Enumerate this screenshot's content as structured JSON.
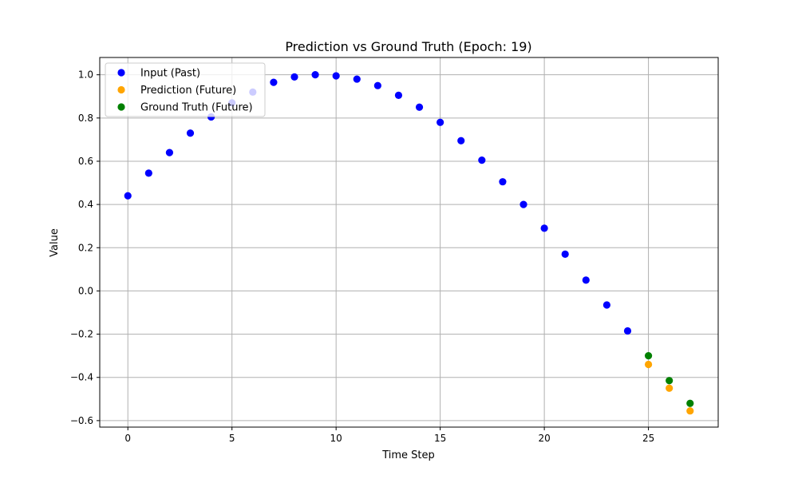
{
  "chart_data": {
    "type": "scatter",
    "title": "Prediction vs Ground Truth (Epoch: 19)",
    "xlabel": "Time Step",
    "ylabel": "Value",
    "xlim": [
      -1.35,
      28.35
    ],
    "ylim": [
      -0.63,
      1.08
    ],
    "xticks": [
      0,
      5,
      10,
      15,
      20,
      25
    ],
    "yticks": [
      -0.6,
      -0.4,
      -0.2,
      0.0,
      0.2,
      0.4,
      0.6,
      0.8,
      1.0
    ],
    "ytick_labels": [
      "−0.6",
      "−0.4",
      "−0.2",
      "0.0",
      "0.2",
      "0.4",
      "0.6",
      "0.8",
      "1.0"
    ],
    "grid": true,
    "legend_position": "top-left",
    "series": [
      {
        "name": "Input (Past)",
        "color": "#0000ff",
        "x": [
          0,
          1,
          2,
          3,
          4,
          5,
          6,
          7,
          8,
          9,
          10,
          11,
          12,
          13,
          14,
          15,
          16,
          17,
          18,
          19,
          20,
          21,
          22,
          23,
          24
        ],
        "y": [
          0.44,
          0.545,
          0.64,
          0.73,
          0.805,
          0.87,
          0.92,
          0.965,
          0.99,
          1.0,
          0.995,
          0.98,
          0.95,
          0.905,
          0.85,
          0.78,
          0.695,
          0.605,
          0.505,
          0.4,
          0.29,
          0.17,
          0.05,
          -0.065,
          -0.185
        ]
      },
      {
        "name": "Prediction (Future)",
        "color": "#ffa500",
        "x": [
          25,
          26,
          27
        ],
        "y": [
          -0.34,
          -0.45,
          -0.555
        ]
      },
      {
        "name": "Ground Truth (Future)",
        "color": "#008000",
        "x": [
          25,
          26,
          27
        ],
        "y": [
          -0.3,
          -0.415,
          -0.52
        ]
      }
    ]
  }
}
